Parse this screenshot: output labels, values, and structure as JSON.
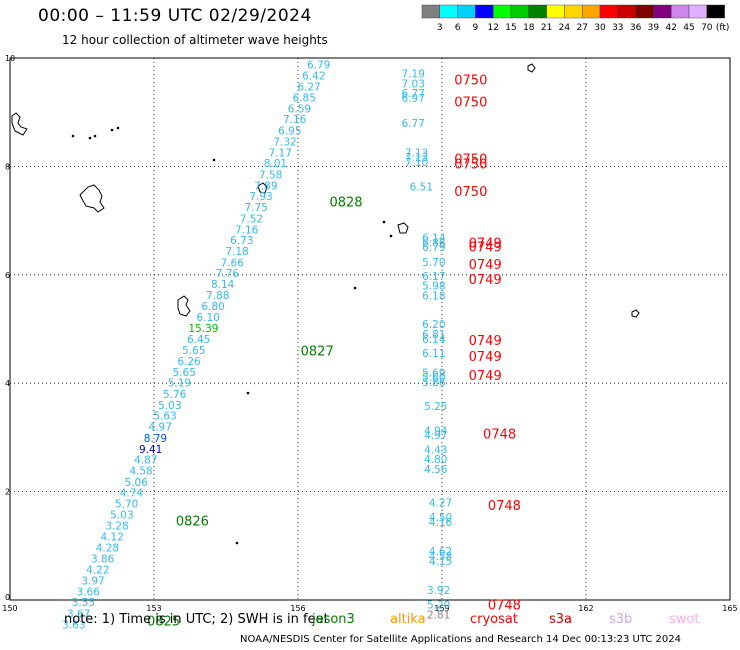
{
  "header": {
    "title": "00:00 – 11:59 UTC 02/29/2024",
    "subtitle": "12 hour collection of altimeter wave heights"
  },
  "colorbar": {
    "labels": [
      "3",
      "6",
      "9",
      "12",
      "15",
      "18",
      "21",
      "24",
      "27",
      "30",
      "33",
      "36",
      "39",
      "42",
      "45",
      "70",
      "(ft)"
    ],
    "colors": [
      "#808080",
      "#00ffff",
      "#00d0ff",
      "#0000ff",
      "#00ff00",
      "#00cc00",
      "#008000",
      "#ffff00",
      "#ffd700",
      "#ffa500",
      "#ff0000",
      "#cc0000",
      "#800000",
      "#800080",
      "#cc88ee",
      "#e0b0ff",
      "#000000"
    ]
  },
  "footer": {
    "note": "note:  1) Time is in UTC; 2) SWH is in feet",
    "credit": "NOAA/NESDIS Center for Satellite Applications and Research    14 Dec 00:13:23 UTC 2024",
    "missions": [
      {
        "name": "jason3",
        "color": "#008000"
      },
      {
        "name": "altika",
        "color": "#ff9900"
      },
      {
        "name": "cryosat",
        "color": "#ff0000"
      },
      {
        "name": "s3a",
        "color": "#cc0000"
      },
      {
        "name": "s3b",
        "color": "#c8a8f0"
      },
      {
        "name": "swot",
        "color": "#ffaaee"
      }
    ]
  },
  "chart_data": {
    "type": "scatter",
    "title": "00:00 – 11:59 UTC 02/29/2024",
    "x_ticks": [
      "150",
      "153",
      "156",
      "159",
      "162",
      "165"
    ],
    "y_ticks": [
      "0",
      "2",
      "4",
      "6",
      "8",
      "10"
    ],
    "xlim": [
      150,
      165
    ],
    "ylim": [
      0,
      10
    ],
    "grid": true,
    "track_a": {
      "color": "#33bbee",
      "points": [
        {
          "x": 156.43,
          "y": 9.88,
          "v": "6.79"
        },
        {
          "x": 156.33,
          "y": 9.68,
          "v": "6.42"
        },
        {
          "x": 156.23,
          "y": 9.47,
          "v": "6.27"
        },
        {
          "x": 156.13,
          "y": 9.27,
          "v": "6.85"
        },
        {
          "x": 156.03,
          "y": 9.07,
          "v": "6.59"
        },
        {
          "x": 155.93,
          "y": 8.87,
          "v": "7.16"
        },
        {
          "x": 155.83,
          "y": 8.66,
          "v": "6.95"
        },
        {
          "x": 155.73,
          "y": 8.46,
          "v": "7.32"
        },
        {
          "x": 155.63,
          "y": 8.26,
          "v": "7.17"
        },
        {
          "x": 155.53,
          "y": 8.06,
          "v": "8.01"
        },
        {
          "x": 155.43,
          "y": 7.85,
          "v": "7.58"
        },
        {
          "x": 155.33,
          "y": 7.65,
          "v": "7.89"
        },
        {
          "x": 155.23,
          "y": 7.45,
          "v": "7.93"
        },
        {
          "x": 155.13,
          "y": 7.25,
          "v": "7.75"
        },
        {
          "x": 155.03,
          "y": 7.04,
          "v": "7.52"
        },
        {
          "x": 154.93,
          "y": 6.84,
          "v": "7.16"
        },
        {
          "x": 154.83,
          "y": 6.64,
          "v": "6.73"
        },
        {
          "x": 154.73,
          "y": 6.44,
          "v": "7.18"
        },
        {
          "x": 154.63,
          "y": 6.23,
          "v": "7.66"
        },
        {
          "x": 154.53,
          "y": 6.03,
          "v": "7.76"
        },
        {
          "x": 154.43,
          "y": 5.83,
          "v": "8.14"
        },
        {
          "x": 154.33,
          "y": 5.63,
          "v": "7.88"
        },
        {
          "x": 154.23,
          "y": 5.42,
          "v": "6.80"
        },
        {
          "x": 154.13,
          "y": 5.22,
          "v": "6.10"
        },
        {
          "x": 154.03,
          "y": 5.02,
          "v": "15.39",
          "c": "#00bb00"
        },
        {
          "x": 153.93,
          "y": 4.82,
          "v": "6.45"
        },
        {
          "x": 153.83,
          "y": 4.61,
          "v": "5.65"
        },
        {
          "x": 153.73,
          "y": 4.41,
          "v": "6.26"
        },
        {
          "x": 153.63,
          "y": 4.21,
          "v": "5.65"
        },
        {
          "x": 153.53,
          "y": 4.01,
          "v": "5.19"
        },
        {
          "x": 153.43,
          "y": 3.8,
          "v": "5.76"
        },
        {
          "x": 153.33,
          "y": 3.6,
          "v": "5.03"
        },
        {
          "x": 153.23,
          "y": 3.4,
          "v": "5.63"
        },
        {
          "x": 153.13,
          "y": 3.2,
          "v": "4.97"
        },
        {
          "x": 153.03,
          "y": 2.99,
          "v": "8.79",
          "c": "#0055ff"
        },
        {
          "x": 152.93,
          "y": 2.79,
          "v": "9.41",
          "c": "#0000cc"
        },
        {
          "x": 152.83,
          "y": 2.59,
          "v": "4.87"
        },
        {
          "x": 152.73,
          "y": 2.39,
          "v": "4.58"
        },
        {
          "x": 152.63,
          "y": 2.18,
          "v": "5.06"
        },
        {
          "x": 152.53,
          "y": 1.98,
          "v": "4.74"
        },
        {
          "x": 152.43,
          "y": 1.78,
          "v": "5.70"
        },
        {
          "x": 152.33,
          "y": 1.58,
          "v": "5.03"
        },
        {
          "x": 152.23,
          "y": 1.37,
          "v": "3.28"
        },
        {
          "x": 152.13,
          "y": 1.17,
          "v": "4.12"
        },
        {
          "x": 152.03,
          "y": 0.97,
          "v": "4.28"
        },
        {
          "x": 151.93,
          "y": 0.77,
          "v": "3.86"
        },
        {
          "x": 151.83,
          "y": 0.56,
          "v": "4.22"
        },
        {
          "x": 151.73,
          "y": 0.36,
          "v": "3.97"
        },
        {
          "x": 151.63,
          "y": 0.16,
          "v": "3.66"
        },
        {
          "x": 151.53,
          "y": -0.04,
          "v": "3.55"
        },
        {
          "x": 151.43,
          "y": -0.25,
          "v": "3.67"
        },
        {
          "x": 151.33,
          "y": -0.45,
          "v": "3.63"
        }
      ],
      "time_labels": [
        {
          "x": 157.0,
          "y": 7.35,
          "t": "0828",
          "c": "#008000"
        },
        {
          "x": 156.4,
          "y": 4.6,
          "t": "0827",
          "c": "#008000"
        },
        {
          "x": 153.8,
          "y": 1.47,
          "t": "0826",
          "c": "#008000"
        },
        {
          "x": 153.2,
          "y": -0.38,
          "t": "0825",
          "c": "#008000"
        }
      ]
    },
    "track_b": {
      "color": "#33bbee",
      "points": [
        {
          "x": 158.4,
          "y": 9.71,
          "v": "7.19"
        },
        {
          "x": 158.4,
          "y": 9.53,
          "v": "7.03"
        },
        {
          "x": 158.4,
          "y": 9.35,
          "v": "6.77"
        },
        {
          "x": 158.4,
          "y": 9.26,
          "v": "6.97"
        },
        {
          "x": 158.4,
          "y": 8.8,
          "v": "6.77"
        },
        {
          "x": 158.47,
          "y": 8.26,
          "v": "7.13"
        },
        {
          "x": 158.47,
          "y": 8.17,
          "v": "7.13"
        },
        {
          "x": 158.47,
          "y": 8.08,
          "v": "7.10"
        },
        {
          "x": 158.57,
          "y": 7.63,
          "v": "6.51"
        },
        {
          "x": 158.83,
          "y": 6.69,
          "v": "6.14"
        },
        {
          "x": 158.83,
          "y": 6.6,
          "v": "6.86"
        },
        {
          "x": 158.83,
          "y": 6.51,
          "v": "6.79"
        },
        {
          "x": 158.83,
          "y": 6.24,
          "v": "5.70"
        },
        {
          "x": 158.83,
          "y": 5.98,
          "v": "6.17"
        },
        {
          "x": 158.83,
          "y": 5.8,
          "v": "5.98"
        },
        {
          "x": 158.83,
          "y": 5.62,
          "v": "6.18"
        },
        {
          "x": 158.83,
          "y": 5.09,
          "v": "6.20"
        },
        {
          "x": 158.83,
          "y": 4.91,
          "v": "6.81"
        },
        {
          "x": 158.83,
          "y": 4.82,
          "v": "6.14"
        },
        {
          "x": 158.83,
          "y": 4.56,
          "v": "6.11"
        },
        {
          "x": 158.83,
          "y": 4.2,
          "v": "5.69"
        },
        {
          "x": 158.83,
          "y": 4.11,
          "v": "5.60"
        },
        {
          "x": 158.83,
          "y": 4.02,
          "v": "5.86"
        },
        {
          "x": 158.87,
          "y": 3.58,
          "v": "5.25"
        },
        {
          "x": 158.87,
          "y": 3.13,
          "v": "4.94"
        },
        {
          "x": 158.87,
          "y": 3.04,
          "v": "4.97"
        },
        {
          "x": 158.87,
          "y": 2.78,
          "v": "4.43"
        },
        {
          "x": 158.87,
          "y": 2.6,
          "v": "4.80"
        },
        {
          "x": 158.87,
          "y": 2.42,
          "v": "4.56"
        },
        {
          "x": 158.97,
          "y": 1.8,
          "v": "4.27"
        },
        {
          "x": 158.97,
          "y": 1.53,
          "v": "4.50"
        },
        {
          "x": 158.97,
          "y": 1.44,
          "v": "4.16"
        },
        {
          "x": 158.97,
          "y": 0.9,
          "v": "4.62"
        },
        {
          "x": 158.97,
          "y": 0.81,
          "v": "4.58"
        },
        {
          "x": 158.97,
          "y": 0.72,
          "v": "4.15"
        },
        {
          "x": 158.93,
          "y": 0.18,
          "v": "3.92"
        },
        {
          "x": 158.93,
          "y": -0.08,
          "v": "5.20"
        },
        {
          "x": 158.93,
          "y": -0.27,
          "v": "2.81",
          "c": "#888888"
        }
      ],
      "time_labels": [
        {
          "x": 159.6,
          "y": 9.6,
          "t": "0750",
          "c": "#ff0000"
        },
        {
          "x": 159.6,
          "y": 9.2,
          "t": "0750",
          "c": "#ff0000"
        },
        {
          "x": 159.6,
          "y": 8.15,
          "t": "0750",
          "c": "#ff0000"
        },
        {
          "x": 159.6,
          "y": 8.05,
          "t": "0750",
          "c": "#ff0000"
        },
        {
          "x": 159.6,
          "y": 7.55,
          "t": "0750",
          "c": "#ff0000"
        },
        {
          "x": 159.9,
          "y": 6.6,
          "t": "0749",
          "c": "#ff0000"
        },
        {
          "x": 159.9,
          "y": 6.52,
          "t": "0749",
          "c": "#ff0000"
        },
        {
          "x": 159.9,
          "y": 6.2,
          "t": "0749",
          "c": "#ff0000"
        },
        {
          "x": 159.9,
          "y": 5.92,
          "t": "0749",
          "c": "#ff0000"
        },
        {
          "x": 159.9,
          "y": 4.8,
          "t": "0749",
          "c": "#ff0000"
        },
        {
          "x": 159.9,
          "y": 4.5,
          "t": "0749",
          "c": "#ff0000"
        },
        {
          "x": 159.9,
          "y": 4.15,
          "t": "0749",
          "c": "#ff0000"
        },
        {
          "x": 160.2,
          "y": 3.07,
          "t": "0748",
          "c": "#ff0000"
        },
        {
          "x": 160.3,
          "y": 1.75,
          "t": "0748",
          "c": "#ff0000"
        },
        {
          "x": 160.3,
          "y": -0.08,
          "t": "0748",
          "c": "#ff0000"
        }
      ]
    }
  }
}
